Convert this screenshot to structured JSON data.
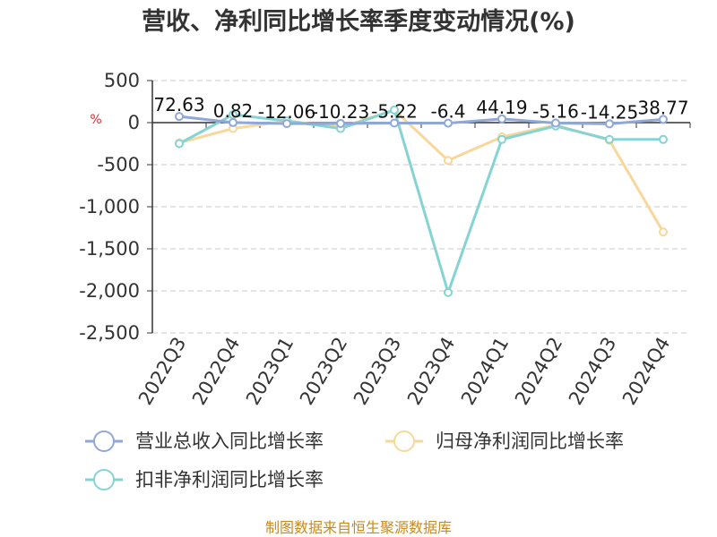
{
  "chart_data": {
    "type": "line",
    "title": "营收、净利同比增长率季度变动情况(%)",
    "ylabel": "%",
    "ylim": [
      -2500,
      500
    ],
    "yticks": [
      500,
      0,
      -500,
      -1000,
      -1500,
      -2000,
      -2500
    ],
    "ytick_labels": [
      "500",
      "0",
      "-500",
      "-1,000",
      "-1,500",
      "-2,000",
      "-2,500"
    ],
    "categories": [
      "2022Q3",
      "2022Q4",
      "2023Q1",
      "2023Q2",
      "2023Q3",
      "2023Q4",
      "2024Q1",
      "2024Q2",
      "2024Q3",
      "2024Q4"
    ],
    "grid": true,
    "legend_position": "bottom",
    "series": [
      {
        "name": "营业总收入同比增长率",
        "color": "#8fa8d8",
        "values": [
          72.63,
          0.82,
          -12.06,
          -10.23,
          -5.22,
          -6.4,
          44.19,
          -5.16,
          -14.25,
          38.77
        ],
        "labels": [
          "72.63",
          "0.82",
          "-12.06",
          "-10.23",
          "-5.22",
          "-6.4",
          "44.19",
          "-5.16",
          "-14.25",
          "38.77"
        ]
      },
      {
        "name": "归母净利润同比增长率",
        "color": "#f8d79a",
        "values": [
          -240,
          -70,
          20,
          -55,
          150,
          -450,
          -170,
          -30,
          -210,
          -1300
        ]
      },
      {
        "name": "扣非净利润同比增长率",
        "color": "#86d3d3",
        "values": [
          -250,
          95,
          20,
          -70,
          150,
          -2020,
          -200,
          -40,
          -200,
          -200
        ]
      }
    ]
  },
  "footer": "制图数据来自恒生聚源数据库"
}
